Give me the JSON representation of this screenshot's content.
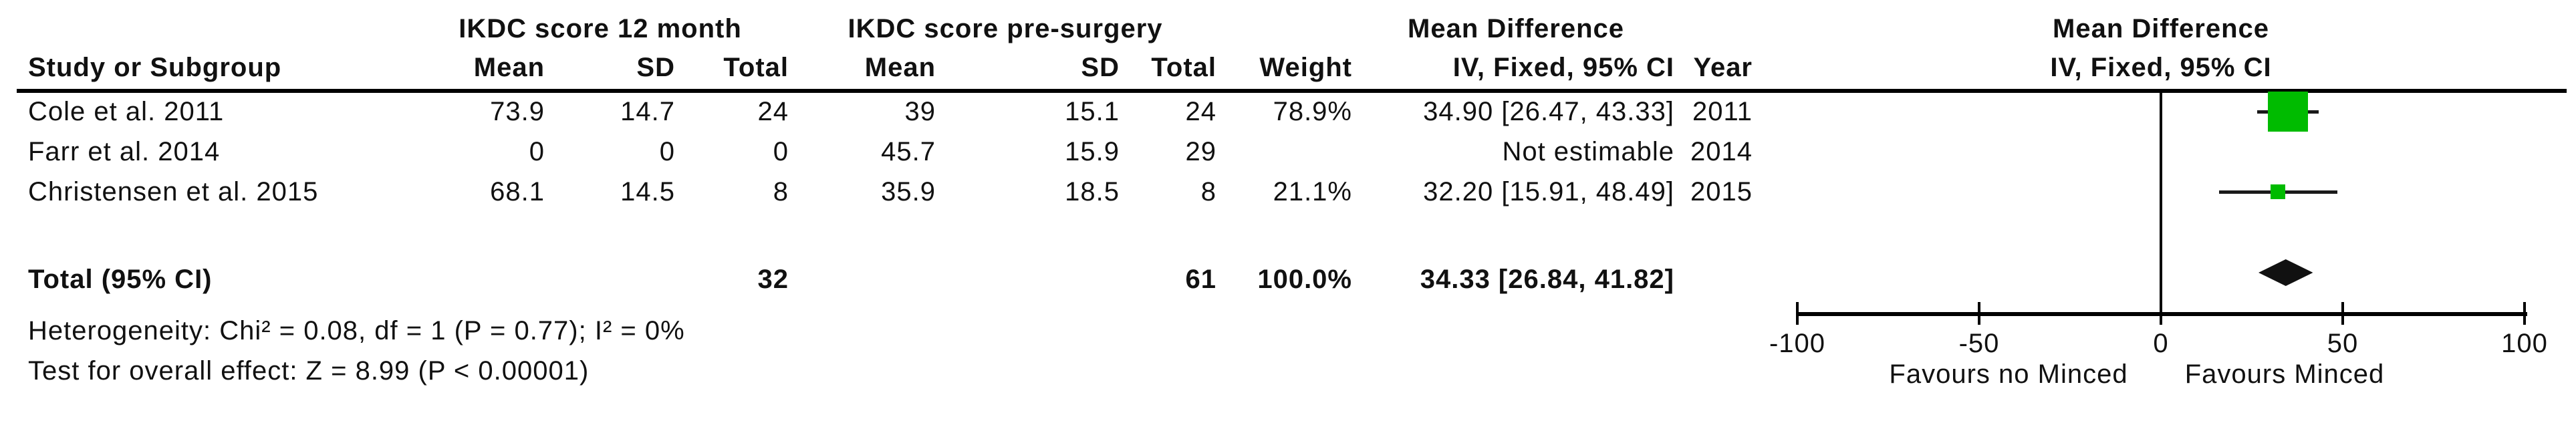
{
  "table": {
    "columns": {
      "study": "Study or Subgroup",
      "group1": "IKDC score 12 month",
      "group2": "IKDC score pre-surgery",
      "mean": "Mean",
      "sd": "SD",
      "total": "Total",
      "weight": "Weight",
      "md_header": "Mean Difference",
      "md_subheader": "IV, Fixed, 95% CI",
      "year": "Year",
      "plot_header": "Mean Difference",
      "plot_subheader": "IV, Fixed, 95% CI"
    },
    "rows": [
      {
        "study": "Cole et al. 2011",
        "mean1": "73.9",
        "sd1": "14.7",
        "total1": "24",
        "mean2": "39",
        "sd2": "15.1",
        "total2": "24",
        "weight": "78.9%",
        "ci": "34.90 [26.47, 43.33]",
        "year": "2011"
      },
      {
        "study": "Farr et al. 2014",
        "mean1": "0",
        "sd1": "0",
        "total1": "0",
        "mean2": "45.7",
        "sd2": "15.9",
        "total2": "29",
        "weight": "",
        "ci": "Not estimable",
        "year": "2014"
      },
      {
        "study": "Christensen et al. 2015",
        "mean1": "68.1",
        "sd1": "14.5",
        "total1": "8",
        "mean2": "35.9",
        "sd2": "18.5",
        "total2": "8",
        "weight": "21.1%",
        "ci": "32.20 [15.91, 48.49]",
        "year": "2015"
      }
    ],
    "total_row": {
      "label": "Total (95% CI)",
      "total1": "32",
      "total2": "61",
      "weight": "100.0%",
      "ci": "34.33 [26.84, 41.82]"
    },
    "heterogeneity": "Heterogeneity: Chi² = 0.08, df = 1 (P = 0.77); I² = 0%",
    "overall_effect": "Test for overall effect: Z = 8.99 (P < 0.00001)"
  },
  "chart_data": {
    "type": "forest",
    "effect_measure": "Mean Difference, IV, Fixed, 95% CI",
    "xlim": [
      -100,
      100
    ],
    "ticks": [
      -100,
      -50,
      0,
      50,
      100
    ],
    "tick_labels": [
      "-100",
      "-50",
      "0",
      "50",
      "100"
    ],
    "favours_left": "Favours no Minced",
    "favours_right": "Favours Minced",
    "marker_color": "#00bb00",
    "line_color": "#1a1a1a",
    "studies": [
      {
        "name": "Cole et al. 2011",
        "estimate": 34.9,
        "ci_low": 26.47,
        "ci_high": 43.33,
        "weight_pct": 78.9,
        "year": 2011,
        "estimable": true
      },
      {
        "name": "Farr et al. 2014",
        "estimate": null,
        "ci_low": null,
        "ci_high": null,
        "weight_pct": null,
        "year": 2014,
        "estimable": false
      },
      {
        "name": "Christensen et al. 2015",
        "estimate": 32.2,
        "ci_low": 15.91,
        "ci_high": 48.49,
        "weight_pct": 21.1,
        "year": 2015,
        "estimable": true
      }
    ],
    "total": {
      "estimate": 34.33,
      "ci_low": 26.84,
      "ci_high": 41.82,
      "weight_pct": 100.0
    }
  }
}
